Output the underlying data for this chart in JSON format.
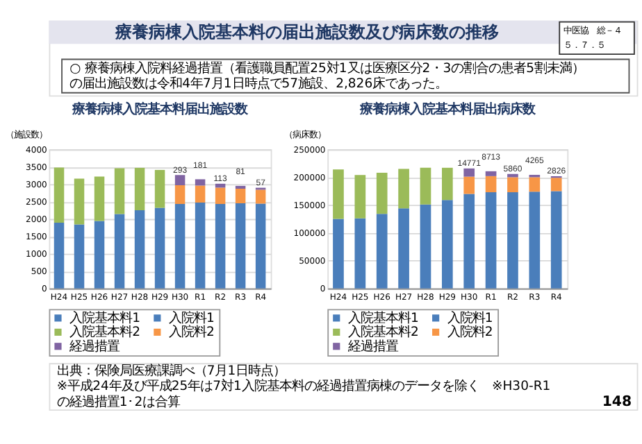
{
  "chart_data": [
    {
      "type": "other",
      "title": "療養病棟入院基本料の届出施設数及び病床数の推移",
      "annotations": [
        "中医協　総－４",
        "５．７．５",
        "○ 療養病棟入院料経過措置（看護職員配置25対1又は医療区分2・3の割合の患者5割未満）の届出施設数は令和4年7月1日時点で57施設、2,826床であった。"
      ]
    },
    {
      "type": "bar",
      "title": "療養病棟入院基本料届出施設数",
      "ylabel": "（施設数）",
      "stacked": true,
      "grid": "y",
      "legend": "bottom",
      "categories": [
        "H24",
        "H25",
        "H26",
        "H27",
        "H28",
        "H29",
        "H30",
        "R1",
        "R2",
        "R3",
        "R4"
      ],
      "ylim": [
        0,
        4000
      ],
      "yticks": [
        0,
        500,
        1000,
        1500,
        2000,
        2500,
        3000,
        3500,
        4000
      ],
      "series": [
        {
          "name": "入院基本料1",
          "color": "#4a7ebb",
          "values": [
            1890,
            1840,
            1940,
            2140,
            2250,
            2320,
            null,
            null,
            null,
            null,
            null
          ]
        },
        {
          "name": "入院料1",
          "color": "#4a7ebb",
          "values": [
            null,
            null,
            null,
            null,
            null,
            null,
            2430,
            2470,
            2430,
            2450,
            2440
          ]
        },
        {
          "name": "入院基本料2",
          "color": "#9bbb59",
          "values": [
            1590,
            1320,
            1280,
            1320,
            1220,
            1090,
            null,
            null,
            null,
            null,
            null
          ]
        },
        {
          "name": "入院料2",
          "color": "#f79646",
          "values": [
            null,
            null,
            null,
            null,
            null,
            null,
            540,
            490,
            470,
            420,
            400
          ]
        },
        {
          "name": "経過措置",
          "color": "#8064a2",
          "values": [
            null,
            null,
            null,
            null,
            null,
            null,
            293,
            181,
            113,
            81,
            57
          ],
          "value_labels": [
            null,
            null,
            null,
            null,
            null,
            null,
            "293",
            "181",
            "113",
            "81",
            "57"
          ]
        }
      ],
      "annotations": [
        "出典：保険局医療課調べ（7月1日時点）",
        "※平成24年及び平成25年は7対1入院基本料の経過措置病棟のデータを除く　※H30-R1の経過措置1･2は合算"
      ]
    },
    {
      "type": "bar",
      "title": "療養病棟入院基本料届出病床数",
      "ylabel": "（病床数）",
      "stacked": true,
      "grid": "y",
      "legend": "bottom",
      "categories": [
        "H24",
        "H25",
        "H26",
        "H27",
        "H28",
        "H29",
        "H30",
        "R1",
        "R2",
        "R3",
        "R4"
      ],
      "ylim": [
        0,
        250000
      ],
      "yticks": [
        0,
        50000,
        100000,
        150000,
        200000,
        250000
      ],
      "series": [
        {
          "name": "入院基本料1",
          "color": "#4a7ebb",
          "values": [
            125000,
            126000,
            134000,
            144000,
            151000,
            159000,
            null,
            null,
            null,
            null,
            null
          ]
        },
        {
          "name": "入院料1",
          "color": "#4a7ebb",
          "values": [
            null,
            null,
            null,
            null,
            null,
            null,
            170000,
            173000,
            173000,
            174000,
            175000
          ]
        },
        {
          "name": "入院基本料2",
          "color": "#9bbb59",
          "values": [
            89000,
            78000,
            74000,
            71000,
            66000,
            58000,
            null,
            null,
            null,
            null,
            null
          ]
        },
        {
          "name": "入院料2",
          "color": "#f79646",
          "values": [
            null,
            null,
            null,
            null,
            null,
            null,
            31000,
            29000,
            27000,
            26000,
            24000
          ]
        },
        {
          "name": "経過措置",
          "color": "#8064a2",
          "values": [
            null,
            null,
            null,
            null,
            null,
            null,
            14771,
            8713,
            5860,
            4265,
            2826
          ],
          "value_labels": [
            null,
            null,
            null,
            null,
            null,
            null,
            "14771",
            "8713",
            "5860",
            "4265",
            "2826"
          ]
        }
      ],
      "annotations": [
        "148"
      ]
    }
  ]
}
